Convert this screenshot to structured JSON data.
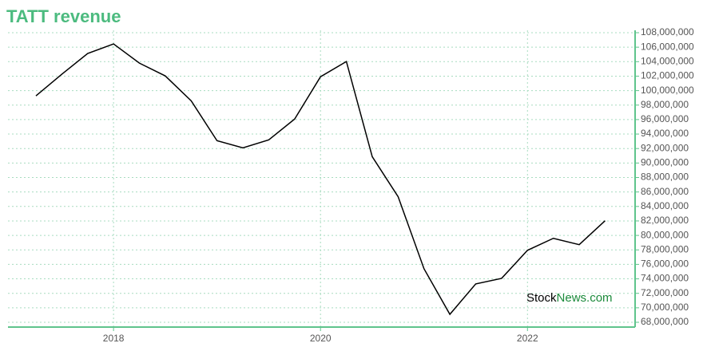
{
  "chart_data": {
    "type": "line",
    "title": "TATT revenue",
    "watermark": [
      "Stock",
      "News.com"
    ],
    "x": [
      2017.25,
      2017.5,
      2017.75,
      2018,
      2018.25,
      2018.5,
      2018.75,
      2019,
      2019.25,
      2019.5,
      2019.75,
      2020,
      2020.25,
      2020.5,
      2020.75,
      2021,
      2021.25,
      2021.5,
      2021.75,
      2022,
      2022.25,
      2022.5,
      2022.75
    ],
    "series": [
      {
        "name": "Revenue",
        "color": "#000000",
        "values": [
          99270000,
          102260000,
          105130000,
          106450000,
          103800000,
          102030000,
          98600000,
          93080000,
          92090000,
          93200000,
          96070000,
          101920000,
          104020000,
          90870000,
          85350000,
          75400000,
          69100000,
          73300000,
          74070000,
          77940000,
          79600000,
          78720000,
          82030000
        ]
      }
    ],
    "xlim": [
      2016.98,
      2023.04
    ],
    "xticks": [
      2018,
      2020,
      2022
    ],
    "ylim": [
      67340000,
      108330000
    ],
    "yticks": [
      {
        "value": 68000000,
        "label": "68,000,000"
      },
      {
        "value": 70000000,
        "label": "70,000,000"
      },
      {
        "value": 72000000,
        "label": "72,000,000"
      },
      {
        "value": 74000000,
        "label": "74,000,000"
      },
      {
        "value": 76000000,
        "label": "76,000,000"
      },
      {
        "value": 78000000,
        "label": "78,000,000"
      },
      {
        "value": 80000000,
        "label": "80,000,000"
      },
      {
        "value": 82000000,
        "label": "82,000,000"
      },
      {
        "value": 84000000,
        "label": "84,000,000"
      },
      {
        "value": 86000000,
        "label": "86,000,000"
      },
      {
        "value": 88000000,
        "label": "88,000,000"
      },
      {
        "value": 90000000,
        "label": "90,000,000"
      },
      {
        "value": 92000000,
        "label": "92,000,000"
      },
      {
        "value": 94000000,
        "label": "94,000,000"
      },
      {
        "value": 96000000,
        "label": "96,000,000"
      },
      {
        "value": 98000000,
        "label": "98,000,000"
      },
      {
        "value": 100000000,
        "label": "100,000,000"
      },
      {
        "value": 102000000,
        "label": "102,000,000"
      },
      {
        "value": 104000000,
        "label": "104,000,000"
      },
      {
        "value": 106000000,
        "label": "106,000,000"
      },
      {
        "value": 108000000,
        "label": "108,000,000"
      }
    ],
    "grid": true
  }
}
